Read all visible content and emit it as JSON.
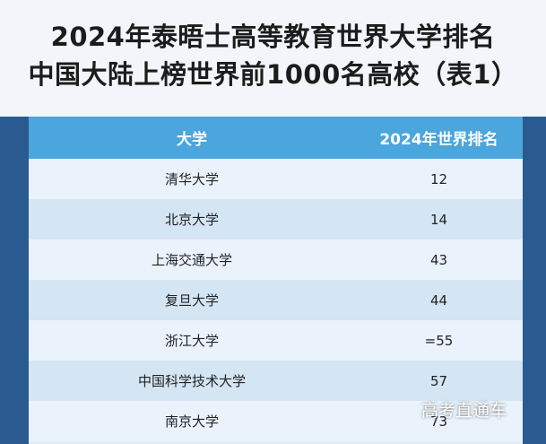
{
  "title": {
    "line1": "2024年泰晤士高等教育世界大学排名",
    "line2": "中国大陆上榜世界前1000名高校（表1）"
  },
  "table": {
    "headers": {
      "university": "大学",
      "rank": "2024年世界排名"
    },
    "rows": [
      {
        "university": "清华大学",
        "rank": "12"
      },
      {
        "university": "北京大学",
        "rank": "14"
      },
      {
        "university": "上海交通大学",
        "rank": "43"
      },
      {
        "university": "复旦大学",
        "rank": "44"
      },
      {
        "university": "浙江大学",
        "rank": "=55"
      },
      {
        "university": "中国科学技术大学",
        "rank": "57"
      },
      {
        "university": "南京大学",
        "rank": "73"
      }
    ]
  },
  "watermark": "高考直通车",
  "colors": {
    "header_bg": "#4aa6dd",
    "row_light": "#eaf3fb",
    "row_dark": "#d4e5f3",
    "frame": "#2a5b90"
  }
}
